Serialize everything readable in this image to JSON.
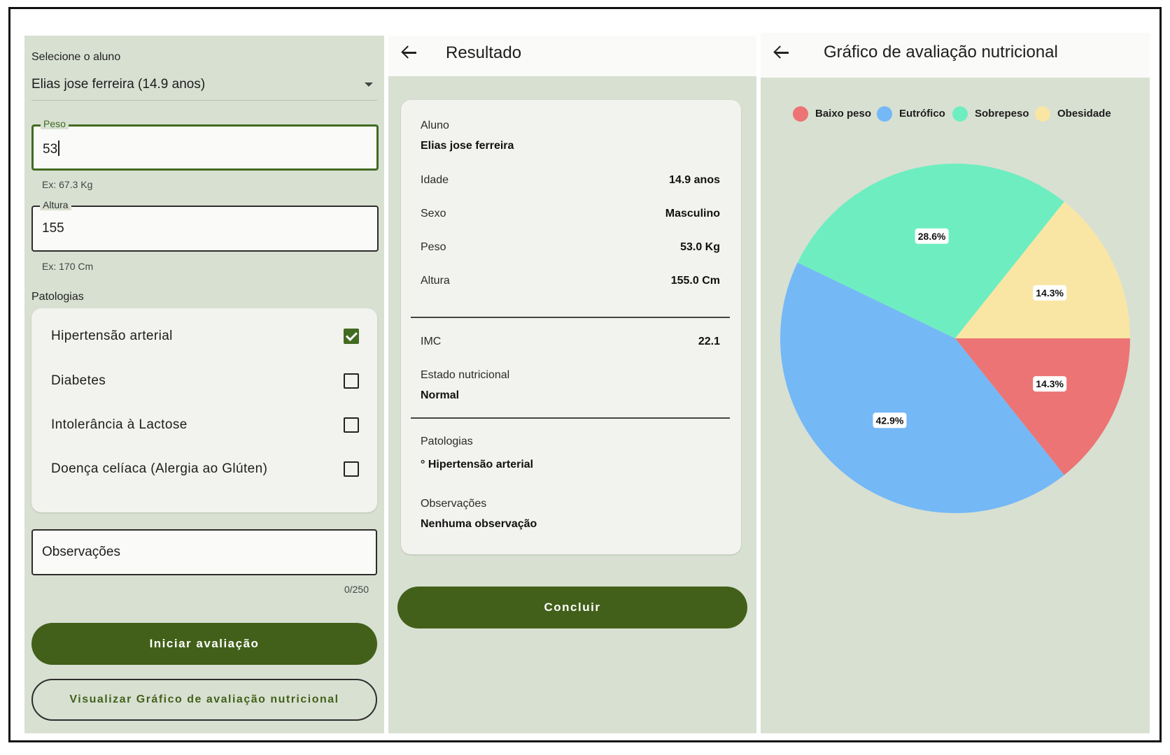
{
  "form": {
    "student_label": "Selecione o aluno",
    "student_value": "Elias jose ferreira (14.9 anos)",
    "weight_label": "Peso",
    "weight_value": "53",
    "weight_hint": "Ex: 67.3 Kg",
    "height_label": "Altura",
    "height_value": "155",
    "height_hint": "Ex: 170 Cm",
    "pathologies_label": "Patologias",
    "pathologies": [
      {
        "label": "Hipertensão arterial",
        "checked": true
      },
      {
        "label": "Diabetes",
        "checked": false
      },
      {
        "label": "Intolerância à Lactose",
        "checked": false
      },
      {
        "label": "Doença celíaca (Alergia ao Glúten)",
        "checked": false
      }
    ],
    "observations_placeholder": "Observações",
    "observations_counter": "0/250",
    "start_button": "Iniciar avaliação",
    "view_chart_button": "Visualizar Gráfico de avaliação nutricional"
  },
  "result": {
    "title": "Resultado",
    "student_key": "Aluno",
    "student_value": "Elias jose ferreira",
    "age_key": "Idade",
    "age_value": "14.9 anos",
    "sex_key": "Sexo",
    "sex_value": "Masculino",
    "weight_key": "Peso",
    "weight_value": "53.0 Kg",
    "height_key": "Altura",
    "height_value": "155.0 Cm",
    "bmi_key": "IMC",
    "bmi_value": "22.1",
    "status_key": "Estado nutricional",
    "status_value": "Normal",
    "pathologies_key": "Patologias",
    "pathologies_value": "° Hipertensão arterial",
    "observations_key": "Observações",
    "observations_value": "Nenhuma observação",
    "conclude_button": "Concluir"
  },
  "chart_screen": {
    "title": "Gráfico de avaliação nutricional"
  },
  "chart_data": {
    "type": "pie",
    "categories": [
      "Baixo peso",
      "Eutrófico",
      "Sobrepeso",
      "Obesidade"
    ],
    "values": [
      14.3,
      42.9,
      28.6,
      14.3
    ],
    "labels": [
      "14.3%",
      "42.9%",
      "28.6%",
      "14.3%"
    ],
    "colors": [
      "#ec7474",
      "#74b8f6",
      "#6eeec0",
      "#f9e6a4"
    ],
    "legend": "top"
  },
  "colors": {
    "primary": "#426019",
    "background": "#d8e0d2",
    "surface": "#f2f2ee"
  }
}
